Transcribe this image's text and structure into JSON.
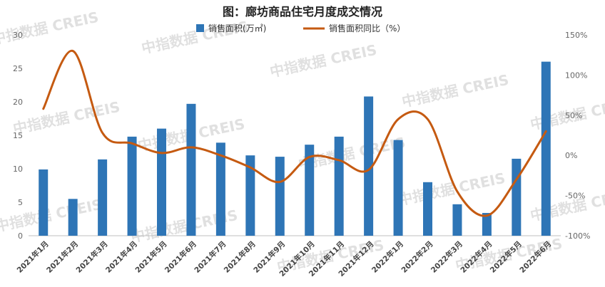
{
  "chart_data": {
    "type": "bar+line",
    "title": "图：廊坊商品住宅月度成交情况",
    "categories": [
      "2021年1月",
      "2021年2月",
      "2021年3月",
      "2021年4月",
      "2021年5月",
      "2021年6月",
      "2021年7月",
      "2021年8月",
      "2021年9月",
      "2021年10月",
      "2021年11月",
      "2021年12月",
      "2022年1月",
      "2022年2月",
      "2022年3月",
      "2022年4月",
      "2022年5月",
      "2022年6月"
    ],
    "series": [
      {
        "name": "销售面积(万㎡)",
        "type": "bar",
        "axis": "left",
        "color": "#2e75b6",
        "values": [
          9.9,
          5.5,
          11.4,
          14.8,
          16.0,
          19.7,
          13.9,
          12.0,
          11.8,
          13.6,
          14.8,
          20.8,
          14.3,
          8.0,
          4.7,
          3.4,
          11.5,
          26.0
        ]
      },
      {
        "name": "销售面积同比（%）",
        "type": "line",
        "axis": "right",
        "color": "#c55a11",
        "values": [
          58,
          130,
          28,
          15,
          3,
          10,
          0,
          -15,
          -33,
          -2,
          -6,
          -18,
          45,
          45,
          -45,
          -75,
          -30,
          30
        ]
      }
    ],
    "y_left": {
      "min": 0,
      "max": 30,
      "ticks": [
        "0",
        "5",
        "10",
        "15",
        "20",
        "25",
        "30"
      ]
    },
    "y_right": {
      "min": -100,
      "max": 150,
      "ticks": [
        "-100%",
        "-50%",
        "0%",
        "50%",
        "100%",
        "150%"
      ]
    },
    "grid": false,
    "legend": "top-center",
    "watermark": "中指数据 CREIS"
  }
}
